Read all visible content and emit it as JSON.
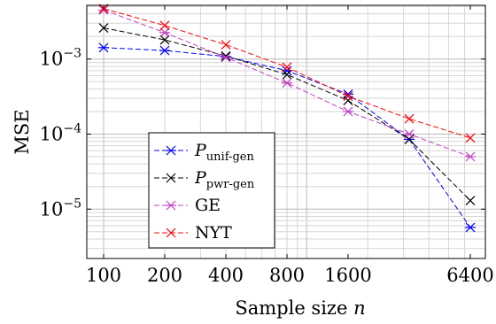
{
  "chart_data": {
    "type": "line",
    "xlabel": "Sample size",
    "xlabel_var": "n",
    "ylabel": "MSE",
    "x_scale": "log",
    "y_scale": "log",
    "x_ticks": [
      100,
      200,
      400,
      800,
      1600,
      6400
    ],
    "x_tick_labels": [
      "100",
      "200",
      "400",
      "800",
      "1600",
      "6400"
    ],
    "y_ticks": [
      1e-05,
      0.0001,
      0.001
    ],
    "y_tick_labels": [
      {
        "base": "10",
        "exp": "−5"
      },
      {
        "base": "10",
        "exp": "−4"
      },
      {
        "base": "10",
        "exp": "−3"
      }
    ],
    "xlim": [
      100,
      6400
    ],
    "ylim": [
      2.2e-06,
      0.0052
    ],
    "grid": true,
    "legend_position": "bottom-left",
    "x": [
      100,
      200,
      400,
      800,
      1600,
      3200,
      6400
    ],
    "series": [
      {
        "name": "P",
        "name_sub": "unif-gen",
        "color": "#0000ff",
        "marker": "asterisk",
        "line": "dashed",
        "values": [
          0.00142,
          0.0013,
          0.00108,
          0.0007,
          0.00034,
          8.5e-05,
          5.7e-06
        ]
      },
      {
        "name": "P",
        "name_sub": "pwr-gen",
        "color": "#000000",
        "marker": "cross",
        "line": "dashed",
        "values": [
          0.0026,
          0.0018,
          0.0011,
          0.00062,
          0.00028,
          8.5e-05,
          1.3e-05
        ]
      },
      {
        "name": "GE",
        "color": "#bf40bf",
        "marker": "asterisk",
        "line": "dashed",
        "values": [
          0.0045,
          0.00225,
          0.00105,
          0.00048,
          0.0002,
          0.0001,
          5e-05
        ]
      },
      {
        "name": "NYT",
        "color": "#ff0000",
        "marker": "cross",
        "line": "dashed",
        "values": [
          0.0047,
          0.0028,
          0.00155,
          0.00078,
          0.00032,
          0.00016,
          8.9e-05
        ]
      }
    ]
  }
}
